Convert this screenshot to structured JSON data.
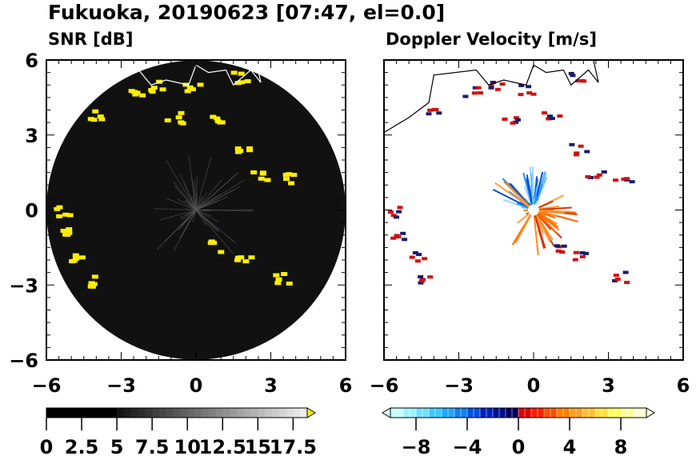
{
  "chart_data": [
    {
      "type": "heatmap",
      "title": "Fukuoka, 20190623 [07:47, el=0.0]",
      "subtitle": "SNR [dB]",
      "xlim": [
        -6,
        6
      ],
      "ylim": [
        -6,
        6
      ],
      "xticks": [
        "−6",
        "−3",
        "0",
        "3",
        "6"
      ],
      "yticks": [
        "6",
        "3",
        "0",
        "−3",
        "−6"
      ],
      "colorbar": {
        "labels": [
          "0",
          "2.5",
          "5",
          "7.5",
          "10",
          "12.5",
          "15",
          "17.5"
        ],
        "range": [
          0,
          18.5
        ],
        "extend": "max"
      },
      "echoes_km": [
        [
          -4,
          3.9
        ],
        [
          -1.6,
          5.0
        ],
        [
          -1,
          3.75
        ],
        [
          1.75,
          2.5
        ],
        [
          2.4,
          1.5
        ],
        [
          3.5,
          1.35
        ],
        [
          -5.4,
          -0.9
        ],
        [
          -4.8,
          -1.85
        ],
        [
          -4.5,
          -2.8
        ],
        [
          0.8,
          -1.4
        ],
        [
          1.75,
          -1.85
        ],
        [
          3.4,
          -2.65
        ],
        [
          -0.3,
          4.9
        ],
        [
          1.75,
          5.35
        ],
        [
          -2.6,
          4.8
        ],
        [
          0.6,
          3.8
        ],
        [
          -5.5,
          0
        ]
      ]
    },
    {
      "type": "heatmap",
      "subtitle": "Doppler Velocity [m/s]",
      "xlim": [
        -6,
        6
      ],
      "ylim": [
        -6,
        6
      ],
      "xticks": [
        "−6",
        "−3",
        "0",
        "3",
        "6"
      ],
      "colorbar": {
        "labels": [
          "−8",
          "−4",
          "0",
          "4",
          "8"
        ],
        "range": [
          -10,
          10
        ],
        "extend": "both"
      }
    }
  ]
}
